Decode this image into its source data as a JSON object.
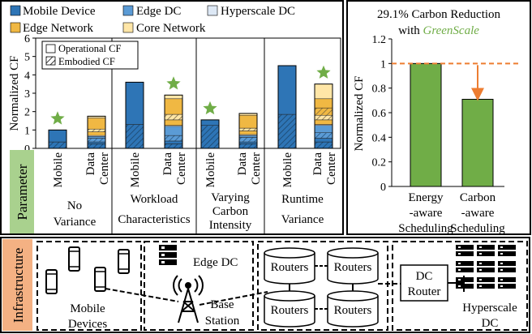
{
  "colors": {
    "mobile_device": "#2e75b6",
    "mobile_device_dark": "#1f4e79",
    "edge_dc": "#5b9bd5",
    "hyperscale_dc": "#dde8f5",
    "edge_network": "#f0b843",
    "core_network": "#ffe6a7",
    "star": "#70ad47",
    "bar_green": "#70ad47",
    "dashed_line": "#ed7d31",
    "param_bg": "#a9d18e",
    "infra_bg": "#f4b183",
    "greenscale_text": "#70ad47"
  },
  "legend": {
    "mobile_device": "Mobile Device",
    "edge_dc": "Edge DC",
    "hyperscale_dc": "Hyperscale DC",
    "edge_network": "Edge Network",
    "core_network": "Core Network",
    "operational": "Operational CF",
    "embodied": "Embodied CF"
  },
  "left_chart": {
    "ylabel": "Normalized CF",
    "parameter_label": "Parameter",
    "x_labels": {
      "mobile": "Mobile",
      "data": "Data",
      "center": "Center"
    },
    "groups": [
      {
        "label_lines": [
          "No",
          "Variance"
        ]
      },
      {
        "label_lines": [
          "Workload",
          "Characteristics"
        ]
      },
      {
        "label_lines": [
          "Varying",
          "Carbon",
          "Intensity"
        ]
      },
      {
        "label_lines": [
          "Runtime",
          "Variance"
        ]
      }
    ]
  },
  "right_chart": {
    "title": "29.1% Carbon Reduction",
    "title_line2_prefix": "with ",
    "title_emph": "GreenScale",
    "ylabel": "Normalized CF",
    "categories": [
      [
        "Energy",
        "-aware",
        "Scheduling"
      ],
      [
        "Carbon",
        "-aware",
        "Scheduling"
      ]
    ]
  },
  "infrastructure": {
    "label": "Infrastructure",
    "edge_dc": "Edge DC",
    "mobile_devices": [
      "Mobile",
      "Devices"
    ],
    "base_station": [
      "Base",
      "Station"
    ],
    "routers": "Routers",
    "dc_router": [
      "DC",
      "Router"
    ],
    "hyperscale_dc": [
      "Hyperscale",
      "DC"
    ]
  },
  "chart_data": [
    {
      "type": "bar",
      "stacked": true,
      "categories": [
        "Mobile",
        "Data Center",
        "Mobile",
        "Data Center",
        "Mobile",
        "Data Center",
        "Mobile",
        "Data Center"
      ],
      "group_labels": [
        "No Variance",
        "Workload Characteristics",
        "Varying Carbon Intensity",
        "Runtime Variance"
      ],
      "ylabel": "Normalized CF",
      "ylim": [
        0,
        6
      ],
      "yticks": [
        0,
        1,
        2,
        3,
        4,
        5,
        6
      ],
      "series": [
        {
          "name": "Mobile Device (Embodied CF)",
          "values": [
            0.35,
            0.25,
            1.3,
            0.25,
            1.25,
            0.25,
            1.85,
            0.35
          ]
        },
        {
          "name": "Mobile Device (Operational CF)",
          "values": [
            0.65,
            0.1,
            2.3,
            0.15,
            0.3,
            0.1,
            2.65,
            0.2
          ]
        },
        {
          "name": "Edge DC (Embodied CF)",
          "values": [
            0,
            0.2,
            0,
            0.3,
            0,
            0.25,
            0,
            0.3
          ]
        },
        {
          "name": "Edge DC (Operational CF)",
          "values": [
            0,
            0.1,
            0,
            0.5,
            0,
            0.1,
            0,
            0.4
          ]
        },
        {
          "name": "Hyperscale DC",
          "values": [
            0,
            0.05,
            0,
            0.05,
            0,
            0.05,
            0,
            0.05
          ]
        },
        {
          "name": "Edge Network",
          "values": [
            0,
            0.2,
            0,
            0.3,
            0,
            0.2,
            0,
            0.25
          ]
        },
        {
          "name": "Core Network",
          "values": [
            0,
            0.15,
            0,
            0.3,
            0,
            0.15,
            0,
            0.25
          ]
        },
        {
          "name": "Core Network (Embodied CF)",
          "values": [
            0,
            0,
            0,
            0,
            0,
            0,
            0,
            0.4
          ]
        },
        {
          "name": "Edge Network (Upper)",
          "values": [
            0,
            0.6,
            0,
            0.85,
            0,
            0.7,
            0,
            0.5
          ]
        },
        {
          "name": "Core Network (Upper)",
          "values": [
            0,
            0.1,
            0,
            0.2,
            0,
            0.1,
            0,
            0.8
          ]
        }
      ],
      "stars": [
        0,
        1,
        0,
        1
      ]
    },
    {
      "type": "bar",
      "title": "29.1% Carbon Reduction with GreenScale",
      "categories": [
        "Energy-aware Scheduling",
        "Carbon-aware Scheduling"
      ],
      "values": [
        1.0,
        0.709
      ],
      "ylabel": "Normalized CF",
      "ylim": [
        0,
        1.2
      ],
      "yticks": [
        0,
        0.2,
        0.4,
        0.6,
        0.8,
        1,
        1.2
      ],
      "reference_line": 1.0,
      "reduction_percent": 29.1
    }
  ]
}
